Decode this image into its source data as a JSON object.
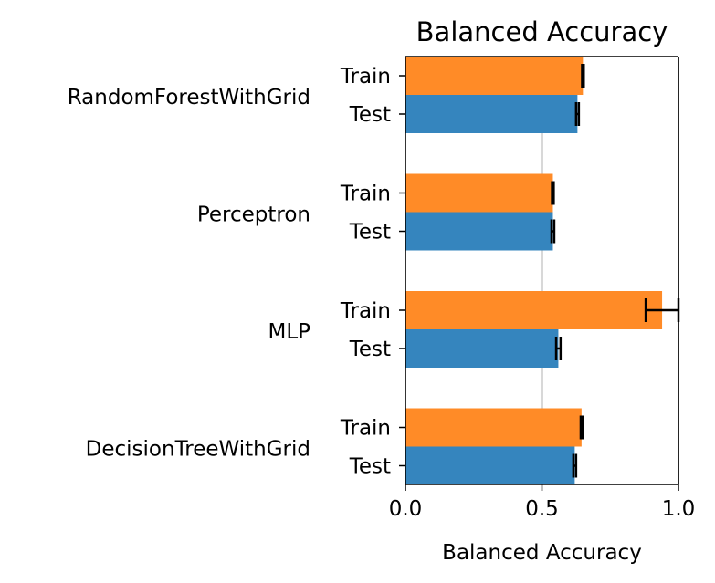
{
  "chart_data": {
    "type": "bar",
    "orientation": "horizontal",
    "title": "Balanced Accuracy",
    "xlabel": "Balanced Accuracy",
    "ylabel": "",
    "xlim": [
      0,
      1.0
    ],
    "x_ticks": [
      "0.0",
      "0.5",
      "1.0"
    ],
    "reference_lines": [
      0.5,
      1.0
    ],
    "grid": false,
    "legend": "none",
    "colors": {
      "Train": "#ff8b27",
      "Test": "#3585be",
      "reference_line": "#b0b0b0",
      "error_bar": "#000000"
    },
    "categories": [
      "RandomForestWithGrid",
      "Perceptron",
      "MLP",
      "DecisionTreeWithGrid"
    ],
    "series": [
      {
        "name": "Train",
        "values": [
          0.65,
          0.54,
          0.94,
          0.645
        ],
        "errors": [
          0.003,
          0.003,
          0.06,
          0.003
        ]
      },
      {
        "name": "Test",
        "values": [
          0.63,
          0.54,
          0.56,
          0.62
        ],
        "errors": [
          0.005,
          0.005,
          0.008,
          0.005
        ]
      }
    ]
  }
}
